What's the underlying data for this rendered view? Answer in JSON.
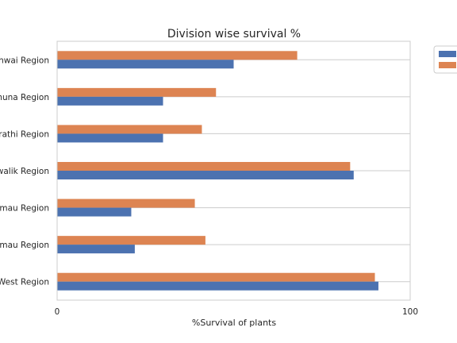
{
  "chart_data": {
    "type": "bar",
    "orientation": "horizontal",
    "title": "Division wise survival %",
    "xlabel": "%Survival of plants",
    "ylabel": "",
    "xlim": [
      0,
      100
    ],
    "xticks": [
      "0",
      "100"
    ],
    "categories": [
      "rhwai Region",
      "muna Region",
      "irathi Region",
      "walik Region",
      "umau Region",
      "umau Region",
      "West Region"
    ],
    "series": [
      {
        "color": "#4c72b0",
        "values": [
          50,
          30,
          30,
          84,
          21,
          22,
          91
        ]
      },
      {
        "color": "#dd8452",
        "values": [
          68,
          45,
          41,
          83,
          39,
          42,
          90
        ]
      }
    ],
    "grid": true,
    "legend_position": "upper-right-outside"
  }
}
